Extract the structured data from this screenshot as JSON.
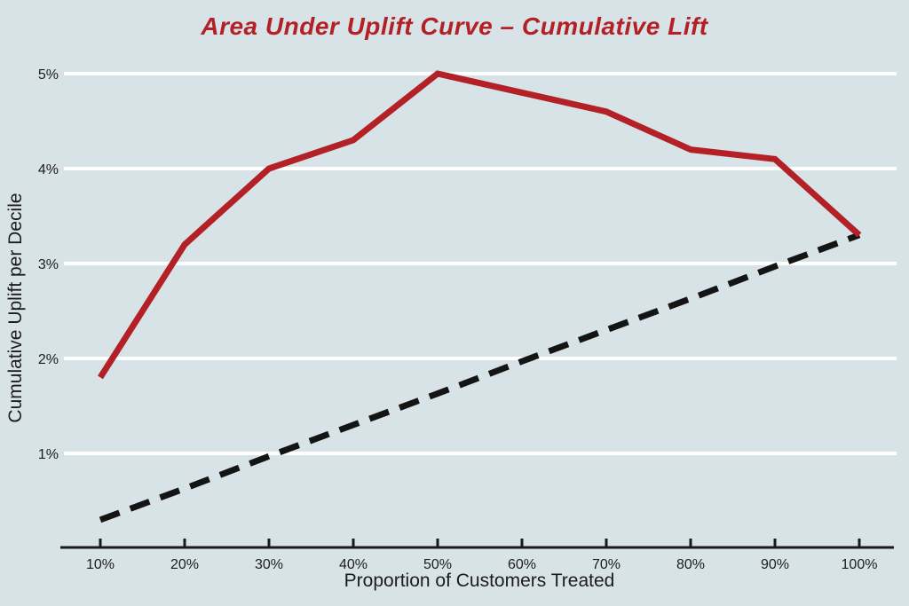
{
  "page": {
    "background_color": "#d8e3e8",
    "gridline_color": "#ffffff",
    "axis_color": "#1a1a1a",
    "accent_color": "#b32025"
  },
  "chart_data": {
    "type": "line",
    "title": "Area Under Uplift Curve – Cumulative Lift",
    "xlabel": "Proportion of Customers Treated",
    "ylabel": "Cumulative Uplift per Decile",
    "x": [
      10,
      20,
      30,
      40,
      50,
      60,
      70,
      80,
      90,
      100
    ],
    "x_tick_labels": [
      "10%",
      "20%",
      "30%",
      "40%",
      "50%",
      "60%",
      "70%",
      "80%",
      "90%",
      "100%"
    ],
    "y_ticks": [
      1,
      2,
      3,
      4,
      5
    ],
    "y_tick_labels": [
      "1%",
      "2%",
      "3%",
      "4%",
      "5%"
    ],
    "ylim": [
      0,
      5.35
    ],
    "grid": "horizontal-white-lines-at-each-percent",
    "legend": "none",
    "series": [
      {
        "name": "uplift-model-curve",
        "style": "solid",
        "color": "#b32025",
        "stroke_width": 7,
        "values": [
          1.8,
          3.2,
          4.0,
          4.3,
          5.0,
          4.8,
          4.6,
          4.2,
          4.1,
          3.3
        ]
      },
      {
        "name": "random-targeting-baseline",
        "style": "dashed",
        "color": "#141414",
        "stroke_width": 7,
        "values": [
          0.3,
          0.63,
          0.97,
          1.3,
          1.63,
          1.97,
          2.3,
          2.63,
          2.97,
          3.3
        ]
      }
    ]
  }
}
